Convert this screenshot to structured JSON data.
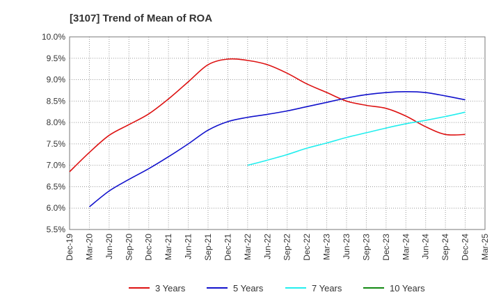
{
  "chart_data": {
    "type": "line",
    "title": "[3107]  Trend of Mean of ROA",
    "xlabel": "",
    "ylabel": "",
    "categories": [
      "Dec-19",
      "Mar-20",
      "Jun-20",
      "Sep-20",
      "Dec-20",
      "Mar-21",
      "Jun-21",
      "Sep-21",
      "Dec-21",
      "Mar-22",
      "Jun-22",
      "Sep-22",
      "Dec-22",
      "Mar-23",
      "Jun-23",
      "Sep-23",
      "Dec-23",
      "Mar-24",
      "Jun-24",
      "Sep-24",
      "Dec-24",
      "Mar-25"
    ],
    "ylim": [
      5.5,
      10.0
    ],
    "yticks": [
      "5.5%",
      "6.0%",
      "6.5%",
      "7.0%",
      "7.5%",
      "8.0%",
      "8.5%",
      "9.0%",
      "9.5%",
      "10.0%"
    ],
    "grid": true,
    "legend_position": "bottom",
    "series": [
      {
        "name": "3 Years",
        "color": "#dd1111",
        "values": [
          6.85,
          7.3,
          7.7,
          7.95,
          8.2,
          8.55,
          8.95,
          9.35,
          9.48,
          9.45,
          9.35,
          9.15,
          8.9,
          8.7,
          8.5,
          8.4,
          8.33,
          8.15,
          7.9,
          7.72,
          7.72,
          null
        ]
      },
      {
        "name": "5 Years",
        "color": "#1111cc",
        "values": [
          null,
          6.03,
          6.4,
          6.67,
          6.92,
          7.2,
          7.5,
          7.82,
          8.02,
          8.12,
          8.19,
          8.27,
          8.37,
          8.47,
          8.57,
          8.65,
          8.7,
          8.72,
          8.7,
          8.62,
          8.53,
          null
        ]
      },
      {
        "name": "7 Years",
        "color": "#22eeee",
        "values": [
          null,
          null,
          null,
          null,
          null,
          null,
          null,
          null,
          null,
          7.0,
          7.12,
          7.25,
          7.4,
          7.52,
          7.65,
          7.76,
          7.87,
          7.97,
          8.05,
          8.14,
          8.24,
          null
        ]
      },
      {
        "name": "10 Years",
        "color": "#118811",
        "values": [
          null,
          null,
          null,
          null,
          null,
          null,
          null,
          null,
          null,
          null,
          null,
          null,
          null,
          null,
          null,
          null,
          null,
          null,
          null,
          null,
          null,
          null
        ]
      }
    ]
  }
}
